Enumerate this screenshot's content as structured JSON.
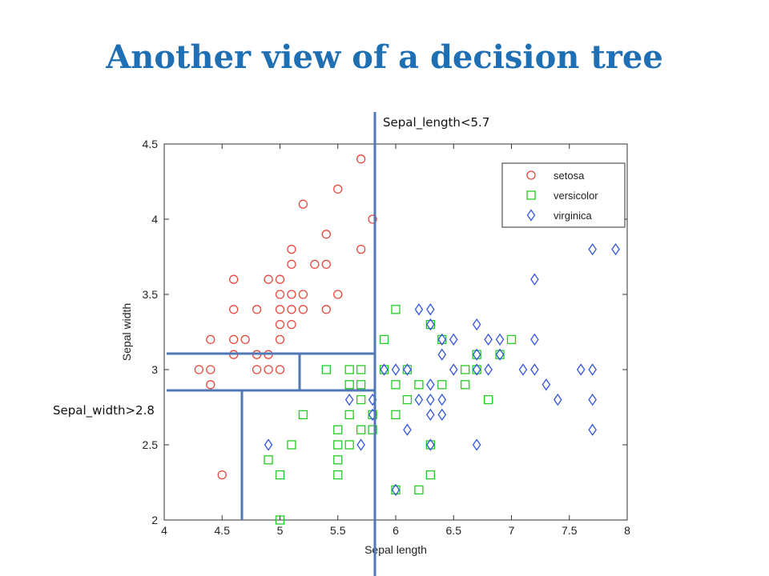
{
  "slide": {
    "title": "Another view of a decision tree"
  },
  "colors": {
    "setosa": "#e8473b",
    "versicolor": "#22cc22",
    "virginica": "#3355dd",
    "split": "#4f78b4"
  },
  "chart_data": {
    "type": "scatter",
    "xlabel": "Sepal length",
    "ylabel": "Sepal width",
    "xlim": [
      4,
      8
    ],
    "ylim": [
      2,
      4.5
    ],
    "xticks": [
      "4",
      "4.5",
      "5",
      "5.5",
      "6",
      "6.5",
      "7",
      "7.5",
      "8"
    ],
    "yticks": [
      "2",
      "2.5",
      "3",
      "3.5",
      "4",
      "4.5"
    ],
    "legend_position": "top-right",
    "grid": false,
    "series": [
      {
        "name": "setosa",
        "marker": "circle",
        "points": [
          [
            4.3,
            3.0
          ],
          [
            4.4,
            2.9
          ],
          [
            4.4,
            3.0
          ],
          [
            4.4,
            3.2
          ],
          [
            4.5,
            2.3
          ],
          [
            4.6,
            3.1
          ],
          [
            4.6,
            3.2
          ],
          [
            4.6,
            3.4
          ],
          [
            4.6,
            3.6
          ],
          [
            4.7,
            3.2
          ],
          [
            4.8,
            3.0
          ],
          [
            4.8,
            3.1
          ],
          [
            4.8,
            3.4
          ],
          [
            4.9,
            3.0
          ],
          [
            4.9,
            3.1
          ],
          [
            4.9,
            3.6
          ],
          [
            5.0,
            3.0
          ],
          [
            5.0,
            3.2
          ],
          [
            5.0,
            3.3
          ],
          [
            5.0,
            3.4
          ],
          [
            5.0,
            3.5
          ],
          [
            5.0,
            3.6
          ],
          [
            5.1,
            3.3
          ],
          [
            5.1,
            3.4
          ],
          [
            5.1,
            3.5
          ],
          [
            5.1,
            3.7
          ],
          [
            5.1,
            3.8
          ],
          [
            5.2,
            3.4
          ],
          [
            5.2,
            3.5
          ],
          [
            5.2,
            4.1
          ],
          [
            5.3,
            3.7
          ],
          [
            5.4,
            3.4
          ],
          [
            5.4,
            3.7
          ],
          [
            5.4,
            3.9
          ],
          [
            5.5,
            3.5
          ],
          [
            5.5,
            4.2
          ],
          [
            5.7,
            3.8
          ],
          [
            5.7,
            4.4
          ],
          [
            5.8,
            4.0
          ]
        ]
      },
      {
        "name": "versicolor",
        "marker": "square",
        "points": [
          [
            4.9,
            2.4
          ],
          [
            5.0,
            2.0
          ],
          [
            5.0,
            2.3
          ],
          [
            5.1,
            2.5
          ],
          [
            5.2,
            2.7
          ],
          [
            5.4,
            3.0
          ],
          [
            5.5,
            2.3
          ],
          [
            5.5,
            2.4
          ],
          [
            5.5,
            2.5
          ],
          [
            5.5,
            2.6
          ],
          [
            5.6,
            2.5
          ],
          [
            5.6,
            2.7
          ],
          [
            5.6,
            2.9
          ],
          [
            5.6,
            3.0
          ],
          [
            5.7,
            2.6
          ],
          [
            5.7,
            2.8
          ],
          [
            5.7,
            2.9
          ],
          [
            5.7,
            3.0
          ],
          [
            5.8,
            2.6
          ],
          [
            5.8,
            2.7
          ],
          [
            5.9,
            3.0
          ],
          [
            5.9,
            3.2
          ],
          [
            6.0,
            2.2
          ],
          [
            6.0,
            2.7
          ],
          [
            6.0,
            2.9
          ],
          [
            6.0,
            3.4
          ],
          [
            6.1,
            2.8
          ],
          [
            6.1,
            3.0
          ],
          [
            6.2,
            2.2
          ],
          [
            6.2,
            2.9
          ],
          [
            6.3,
            2.3
          ],
          [
            6.3,
            2.5
          ],
          [
            6.3,
            3.3
          ],
          [
            6.4,
            2.9
          ],
          [
            6.4,
            3.2
          ],
          [
            6.6,
            2.9
          ],
          [
            6.6,
            3.0
          ],
          [
            6.7,
            3.0
          ],
          [
            6.7,
            3.1
          ],
          [
            6.8,
            2.8
          ],
          [
            6.9,
            3.1
          ],
          [
            7.0,
            3.2
          ]
        ]
      },
      {
        "name": "virginica",
        "marker": "diamond",
        "points": [
          [
            4.9,
            2.5
          ],
          [
            5.6,
            2.8
          ],
          [
            5.7,
            2.5
          ],
          [
            5.8,
            2.7
          ],
          [
            5.8,
            2.8
          ],
          [
            5.9,
            3.0
          ],
          [
            6.0,
            2.2
          ],
          [
            6.0,
            3.0
          ],
          [
            6.1,
            3.0
          ],
          [
            6.1,
            2.6
          ],
          [
            6.2,
            2.8
          ],
          [
            6.2,
            3.4
          ],
          [
            6.3,
            2.5
          ],
          [
            6.3,
            2.7
          ],
          [
            6.3,
            2.8
          ],
          [
            6.3,
            2.9
          ],
          [
            6.3,
            3.3
          ],
          [
            6.3,
            3.4
          ],
          [
            6.4,
            2.7
          ],
          [
            6.4,
            2.8
          ],
          [
            6.4,
            3.1
          ],
          [
            6.4,
            3.2
          ],
          [
            6.5,
            3.0
          ],
          [
            6.5,
            3.2
          ],
          [
            6.7,
            2.5
          ],
          [
            6.7,
            3.0
          ],
          [
            6.7,
            3.1
          ],
          [
            6.7,
            3.3
          ],
          [
            6.8,
            3.0
          ],
          [
            6.8,
            3.2
          ],
          [
            6.9,
            3.1
          ],
          [
            6.9,
            3.2
          ],
          [
            7.1,
            3.0
          ],
          [
            7.2,
            3.0
          ],
          [
            7.2,
            3.2
          ],
          [
            7.2,
            3.6
          ],
          [
            7.3,
            2.9
          ],
          [
            7.4,
            2.8
          ],
          [
            7.6,
            3.0
          ],
          [
            7.7,
            2.6
          ],
          [
            7.7,
            2.8
          ],
          [
            7.7,
            3.0
          ],
          [
            7.7,
            3.8
          ],
          [
            7.9,
            3.8
          ]
        ]
      }
    ],
    "split_annotations": [
      {
        "label": "Sepal_length<5.7"
      },
      {
        "label": "Sepal_width>2.8"
      }
    ]
  }
}
